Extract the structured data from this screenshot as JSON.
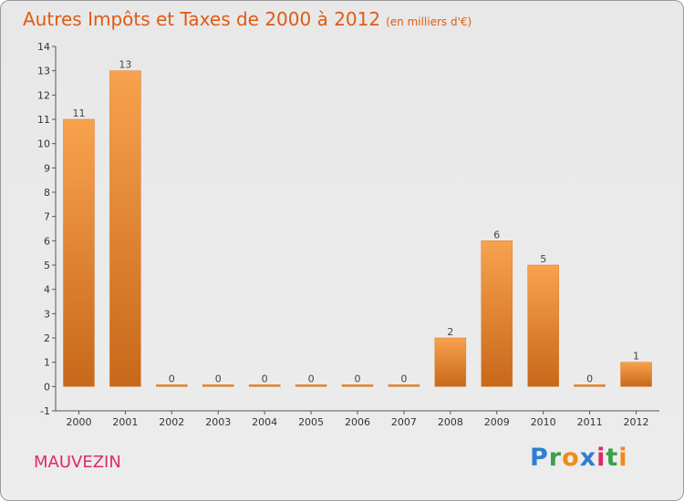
{
  "title": "Autres Impôts et Taxes de 2000 à 2012",
  "subtitle": "(en milliers d'€)",
  "commune": "MAUVEZIN",
  "logo": {
    "p": "P",
    "r": "r",
    "o": "o",
    "x": "x",
    "i1": "i",
    "t": "t",
    "i2": "i"
  },
  "colors": {
    "bar_top": "#f7a24e",
    "bar_bottom": "#c8681a",
    "title": "#e05a12",
    "commune": "#dd2a68"
  },
  "chart_data": {
    "type": "bar",
    "categories": [
      "2000",
      "2001",
      "2002",
      "2003",
      "2004",
      "2005",
      "2006",
      "2007",
      "2008",
      "2009",
      "2010",
      "2011",
      "2012"
    ],
    "values": [
      11,
      13,
      0,
      0,
      0,
      0,
      0,
      0,
      2,
      6,
      5,
      0,
      1
    ],
    "ylim": [
      -1,
      14
    ],
    "yticks": [
      -1,
      0,
      1,
      2,
      3,
      4,
      5,
      6,
      7,
      8,
      9,
      10,
      11,
      12,
      13,
      14
    ],
    "grid": false,
    "xlabel": "",
    "ylabel": ""
  }
}
